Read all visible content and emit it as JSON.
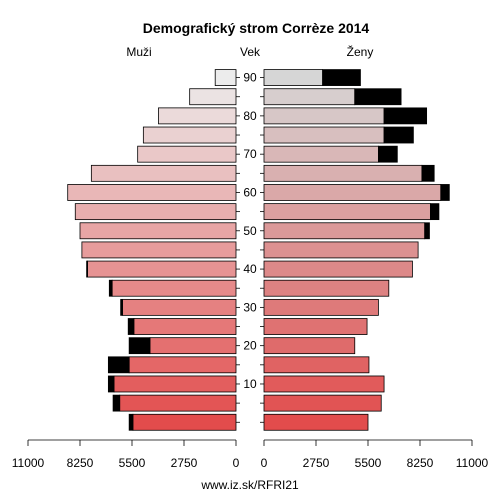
{
  "chart_data": {
    "type": "bar",
    "title": "Demografický strom Corrèze 2014",
    "left_label": "Muži",
    "center_label": "Vek",
    "right_label": "Ženy",
    "source": "www.iz.sk/RFRI21",
    "xlim": [
      0,
      11000
    ],
    "x_ticks_left": [
      "11000",
      "8250",
      "5500",
      "2750",
      "0"
    ],
    "x_ticks_right": [
      "0",
      "2750",
      "5500",
      "8250",
      "11000"
    ],
    "age_ticks": [
      "10",
      "20",
      "30",
      "40",
      "50",
      "60",
      "70",
      "80",
      "90"
    ],
    "age_groups": [
      "0-4",
      "5-9",
      "10-14",
      "15-19",
      "20-24",
      "25-29",
      "30-34",
      "35-39",
      "40-44",
      "45-49",
      "50-54",
      "55-59",
      "60-64",
      "65-69",
      "70-74",
      "75-79",
      "80-84",
      "85-89",
      "90+"
    ],
    "series": [
      {
        "name": "Muži",
        "values": [
          5450,
          6150,
          6450,
          5650,
          4550,
          5400,
          6000,
          6550,
          7850,
          8150,
          8250,
          8500,
          8900,
          7650,
          5200,
          4900,
          4100,
          2450,
          1100
        ],
        "excess": [
          200,
          350,
          300,
          1100,
          1100,
          300,
          100,
          150,
          50,
          0,
          0,
          0,
          0,
          0,
          0,
          0,
          0,
          0,
          0
        ]
      },
      {
        "name": "Ženy",
        "values": [
          5500,
          6200,
          6350,
          5550,
          4800,
          5450,
          6050,
          6600,
          7850,
          8150,
          8500,
          8800,
          9350,
          8350,
          6050,
          6350,
          6350,
          4800,
          3100
        ],
        "excess": [
          0,
          0,
          0,
          0,
          0,
          0,
          0,
          0,
          0,
          0,
          250,
          450,
          450,
          650,
          1000,
          1550,
          2250,
          2450,
          2000
        ]
      }
    ]
  }
}
